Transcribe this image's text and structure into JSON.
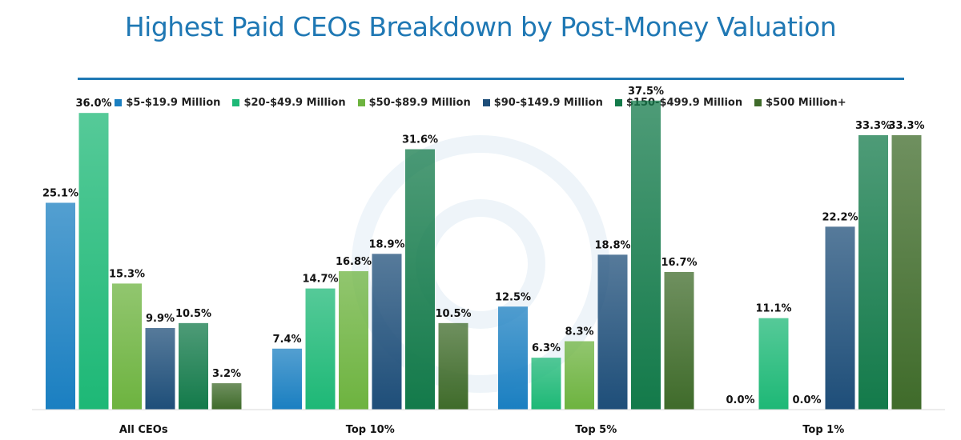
{
  "chart_data": {
    "type": "bar",
    "title": "Highest Paid CEOs Breakdown by Post-Money Valuation",
    "categories": [
      "All CEOs",
      "Top 10%",
      "Top 5%",
      "Top 1%"
    ],
    "series": [
      {
        "name": "$5-$19.9 Million",
        "color": "#1a7fc1",
        "values": [
          25.1,
          7.4,
          12.5,
          0.0
        ]
      },
      {
        "name": "$20-$49.9 Million",
        "color": "#1db876",
        "values": [
          36.0,
          14.7,
          6.3,
          11.1
        ]
      },
      {
        "name": "$50-$89.9 Million",
        "color": "#6db33f",
        "values": [
          15.3,
          16.8,
          8.3,
          0.0
        ]
      },
      {
        "name": "$90-$149.9 Million",
        "color": "#1e4e79",
        "values": [
          9.9,
          18.9,
          18.8,
          22.2
        ]
      },
      {
        "name": "$150-$499.9 Million",
        "color": "#137a4a",
        "values": [
          10.5,
          31.6,
          37.5,
          33.3
        ]
      },
      {
        "name": "$500 Million+",
        "color": "#3f6b2a",
        "values": [
          3.2,
          10.5,
          16.7,
          33.3
        ]
      }
    ],
    "value_suffix": "%",
    "ylim": [
      0,
      40
    ],
    "legend": "top",
    "grid": false
  }
}
